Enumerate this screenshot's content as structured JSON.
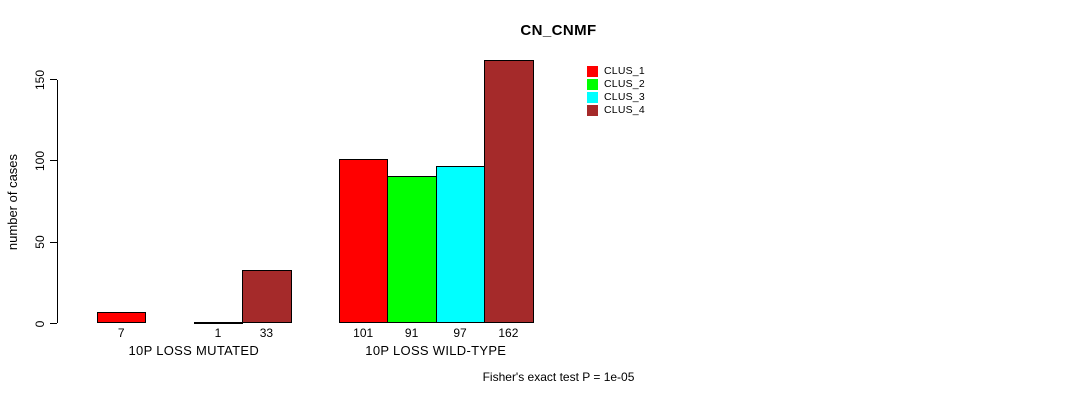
{
  "chart_data": {
    "type": "bar",
    "title": "CN_CNMF",
    "xlabel": "",
    "ylabel": "number of cases",
    "yticks": [
      0,
      50,
      100,
      150
    ],
    "ylim": [
      0,
      165
    ],
    "grid": false,
    "legend_position": "inside-top-right",
    "value_labels_shown": true,
    "categories": [
      "10P LOSS MUTATED",
      "10P LOSS WILD-TYPE"
    ],
    "series": [
      {
        "name": "CLUS_1",
        "color": "#ff0000",
        "values": [
          7,
          101
        ]
      },
      {
        "name": "CLUS_2",
        "color": "#00ff00",
        "values": [
          null,
          91
        ]
      },
      {
        "name": "CLUS_3",
        "color": "#00ffff",
        "values": [
          1,
          97
        ]
      },
      {
        "name": "CLUS_4",
        "color": "#a52a2a",
        "values": [
          33,
          162
        ]
      }
    ],
    "footnote": "Fisher's exact test P = 1e-05"
  }
}
